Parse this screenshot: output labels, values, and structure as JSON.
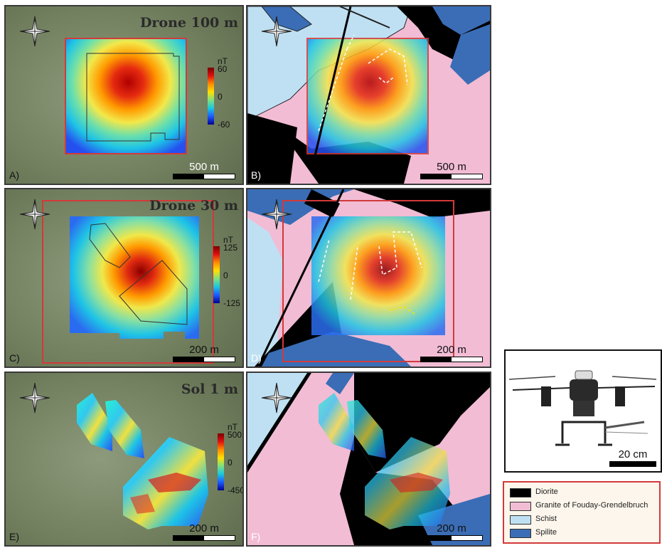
{
  "panels": {
    "a": {
      "label": "A)",
      "title": "Drone 100 m",
      "scale": "500 m"
    },
    "b": {
      "label": "B)",
      "scale": "500 m"
    },
    "c": {
      "label": "C)",
      "title": "Drone 30 m",
      "scale": "200 m"
    },
    "d": {
      "label": "D)",
      "scale": "200 m"
    },
    "e": {
      "label": "E)",
      "title": "Sol 1 m",
      "scale": "200 m"
    },
    "f": {
      "label": "F)",
      "scale": "200 m"
    }
  },
  "colorbars": {
    "a": {
      "unit": "nT",
      "max": "60",
      "mid": "0",
      "min": "-60"
    },
    "c": {
      "unit": "nT",
      "max": "125",
      "mid": "0",
      "min": "-125"
    },
    "e": {
      "unit": "nT",
      "max": "500",
      "mid": "0",
      "min": "-450"
    }
  },
  "drone_photo": {
    "scale": "20 cm"
  },
  "legend": {
    "items": [
      {
        "label": "Diorite",
        "color": "#000000"
      },
      {
        "label": "Granite of Fouday-Grendelbruch",
        "color": "#f2bcd4"
      },
      {
        "label": "Schist",
        "color": "#bfe0f2"
      },
      {
        "label": "Spilite",
        "color": "#3a6db5"
      }
    ]
  },
  "colors": {
    "aerial": "#7c8a6e",
    "survey_outline": "#d23a3a",
    "diorite": "#000000",
    "granite": "#f2bcd4",
    "schist": "#bfe0f2",
    "spilite": "#3a6db5"
  }
}
